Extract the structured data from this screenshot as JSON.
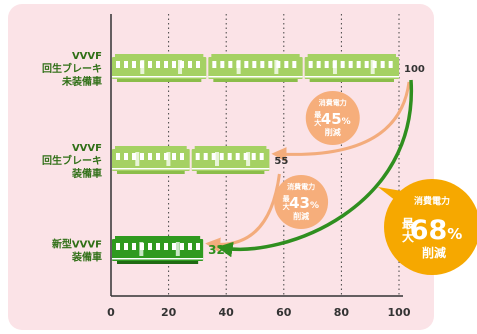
{
  "colors": {
    "panel": "#fbe3e7",
    "axis": "#333333",
    "grid": "#444444",
    "label": "#2f6f16",
    "train_light": "#a5d163",
    "train_dark": "#2f9a1f",
    "train_window": "#ffffff",
    "arrow_orange": "#f3ac7c",
    "badge_orange": "#f6ae7b",
    "arrow_green": "#2f8f1f",
    "badge_yellow": "#f6a800",
    "text_white": "#ffffff",
    "text_dark": "#333333"
  },
  "chart_data": {
    "type": "bar",
    "categories": [
      [
        "VVVF",
        "回生ブレーキ",
        "未装備車"
      ],
      [
        "VVVF",
        "回生ブレーキ",
        "装備車"
      ],
      [
        "新型VVVF",
        "装備車"
      ]
    ],
    "values": [
      100,
      55,
      32
    ],
    "value_labels": [
      "100",
      "55",
      "32"
    ],
    "xlim": [
      0,
      100
    ],
    "x_ticks": [
      0,
      20,
      40,
      60,
      80,
      100
    ],
    "x_tick_labels": [
      "0",
      "20",
      "40",
      "60",
      "80",
      "100"
    ],
    "grid": "vertical dotted",
    "bar_styles": [
      "light",
      "light",
      "dark"
    ],
    "annotations": [
      {
        "title": "消費電力",
        "prefix": "最大",
        "value": "45",
        "unit": "%",
        "suffix": "削減",
        "from": 0,
        "to": 1
      },
      {
        "title": "消費電力",
        "prefix": "最大",
        "value": "43",
        "unit": "%",
        "suffix": "削減",
        "from": 1,
        "to": 2
      },
      {
        "title": "消費電力",
        "prefix": "最大",
        "value": "68",
        "unit": "%",
        "suffix": "削減",
        "from": 0,
        "to": 2
      }
    ]
  }
}
